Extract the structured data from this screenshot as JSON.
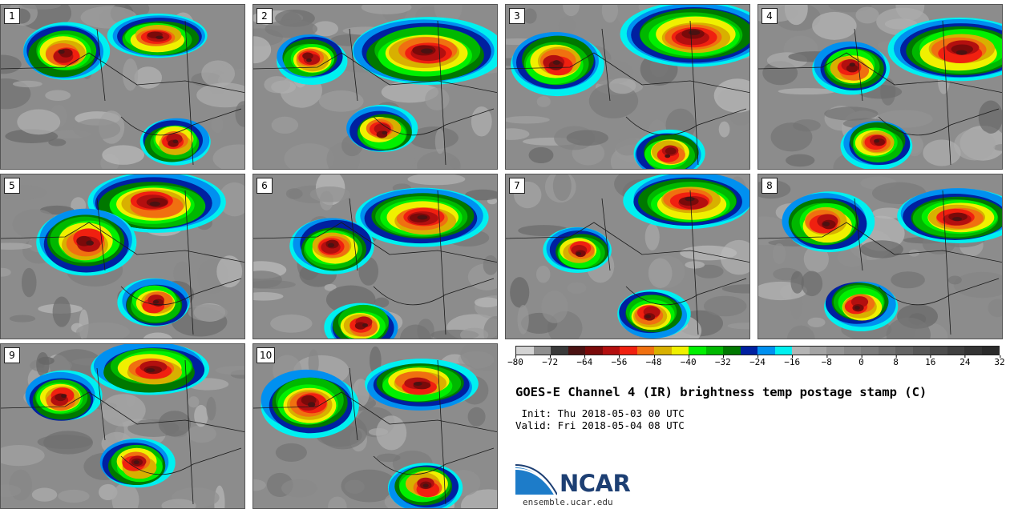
{
  "panels": [
    {
      "label": "1"
    },
    {
      "label": "2"
    },
    {
      "label": "3"
    },
    {
      "label": "4"
    },
    {
      "label": "5"
    },
    {
      "label": "6"
    },
    {
      "label": "7"
    },
    {
      "label": "8"
    },
    {
      "label": "9"
    },
    {
      "label": "10"
    }
  ],
  "colorbar": {
    "colors": [
      "#d3d3d3",
      "#8f8f8f",
      "#3a3a3a",
      "#4a1212",
      "#7a0a0a",
      "#b30f0f",
      "#f02010",
      "#f07010",
      "#d8b000",
      "#f0f000",
      "#00f000",
      "#00b800",
      "#007800",
      "#0020a0",
      "#0090f0",
      "#00f0f0",
      "#b4b4b4",
      "#a4a4a4",
      "#949494",
      "#888888",
      "#7c7c7c",
      "#707070",
      "#646464",
      "#585858",
      "#4c4c4c",
      "#404040",
      "#343434",
      "#2a2a2a"
    ],
    "ticks": [
      "−80",
      "−72",
      "−64",
      "−56",
      "−48",
      "−40",
      "−32",
      "−24",
      "−16",
      "−8",
      "0",
      "8",
      "16",
      "24",
      "32"
    ]
  },
  "title": "GOES-E Channel 4 (IR) brightness temp postage stamp (C)",
  "init": " Init: Thu 2018-05-03 00 UTC",
  "valid": "Valid: Fri 2018-05-04 08 UTC",
  "logo": {
    "text": "NCAR",
    "site": "ensemble.ucar.edu",
    "color": "#1d3f73"
  }
}
